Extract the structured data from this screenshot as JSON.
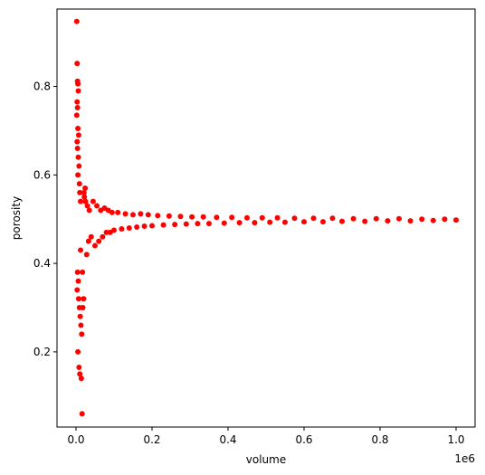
{
  "chart_data": {
    "type": "scatter",
    "title": "",
    "xlabel": "volume",
    "ylabel": "porosity",
    "x_offset_text": "1e6",
    "xlim": [
      -0.05,
      1.05
    ],
    "ylim": [
      0.03,
      0.975
    ],
    "xticks": [
      0.0,
      0.2,
      0.4,
      0.6,
      0.8,
      1.0
    ],
    "xtick_labels": [
      "0.0",
      "0.2",
      "0.4",
      "0.6",
      "0.8",
      "1.0"
    ],
    "yticks": [
      0.2,
      0.4,
      0.6,
      0.8
    ],
    "ytick_labels": [
      "0.2",
      "0.4",
      "0.6",
      "0.8"
    ],
    "grid": false,
    "legend": false,
    "marker_color": "#ff0000",
    "series": [
      {
        "x": [
          0.002,
          0.003,
          0.004,
          0.005,
          0.006,
          0.003,
          0.004,
          0.002,
          0.005,
          0.007,
          0.003,
          0.004,
          0.006,
          0.008,
          0.005,
          0.009,
          0.01,
          0.012,
          0.004,
          0.006,
          0.003,
          0.007,
          0.009,
          0.011,
          0.013,
          0.015,
          0.005,
          0.008,
          0.01,
          0.014,
          0.016,
          0.018,
          0.02,
          0.022,
          0.025,
          0.012,
          0.017,
          0.021,
          0.024,
          0.028,
          0.03,
          0.033,
          0.035,
          0.04,
          0.045,
          0.05,
          0.055,
          0.06,
          0.065,
          0.07,
          0.075,
          0.08,
          0.085,
          0.09,
          0.095,
          0.1,
          0.11,
          0.12,
          0.13,
          0.14,
          0.15,
          0.16,
          0.17,
          0.18,
          0.19,
          0.2,
          0.215,
          0.23,
          0.245,
          0.26,
          0.275,
          0.29,
          0.305,
          0.32,
          0.335,
          0.35,
          0.37,
          0.39,
          0.41,
          0.43,
          0.45,
          0.47,
          0.49,
          0.51,
          0.53,
          0.55,
          0.575,
          0.6,
          0.625,
          0.65,
          0.675,
          0.7,
          0.73,
          0.76,
          0.79,
          0.82,
          0.85,
          0.88,
          0.91,
          0.94,
          0.97,
          1.0
        ],
        "y": [
          0.947,
          0.852,
          0.812,
          0.806,
          0.79,
          0.765,
          0.752,
          0.735,
          0.705,
          0.69,
          0.675,
          0.66,
          0.64,
          0.62,
          0.6,
          0.58,
          0.56,
          0.54,
          0.38,
          0.36,
          0.34,
          0.32,
          0.3,
          0.28,
          0.26,
          0.24,
          0.2,
          0.165,
          0.15,
          0.14,
          0.06,
          0.3,
          0.32,
          0.55,
          0.54,
          0.43,
          0.38,
          0.56,
          0.57,
          0.42,
          0.53,
          0.45,
          0.52,
          0.46,
          0.54,
          0.44,
          0.53,
          0.45,
          0.52,
          0.46,
          0.525,
          0.47,
          0.52,
          0.47,
          0.515,
          0.475,
          0.515,
          0.478,
          0.512,
          0.48,
          0.51,
          0.482,
          0.512,
          0.484,
          0.51,
          0.485,
          0.508,
          0.487,
          0.507,
          0.488,
          0.506,
          0.489,
          0.505,
          0.49,
          0.505,
          0.49,
          0.504,
          0.491,
          0.504,
          0.492,
          0.503,
          0.492,
          0.503,
          0.493,
          0.503,
          0.493,
          0.502,
          0.494,
          0.502,
          0.494,
          0.502,
          0.495,
          0.501,
          0.495,
          0.501,
          0.496,
          0.501,
          0.496,
          0.5,
          0.497,
          0.5,
          0.498
        ]
      }
    ]
  }
}
